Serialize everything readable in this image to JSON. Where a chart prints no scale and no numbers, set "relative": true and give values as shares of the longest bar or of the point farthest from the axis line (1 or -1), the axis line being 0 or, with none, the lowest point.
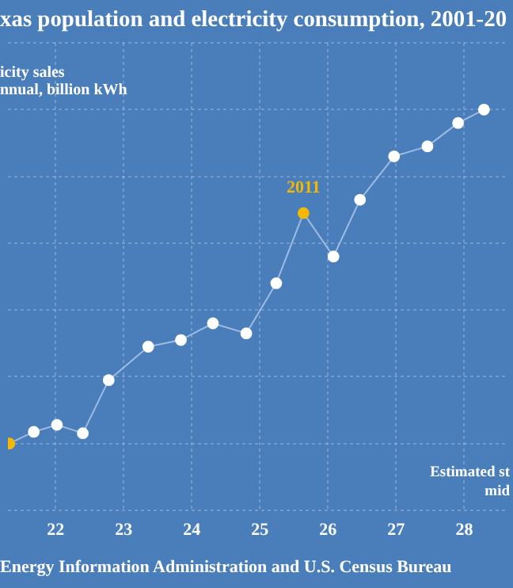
{
  "chart_data": {
    "type": "line",
    "title": "xas population and electricity consumption, 2001-20",
    "xlabel": "Estimated st\nmid",
    "relative": true,
    "x": [
      21.32,
      21.68,
      22.02,
      22.4,
      22.78,
      23.36,
      23.84,
      24.31,
      24.8,
      25.24,
      25.64,
      26.08,
      26.47,
      26.97,
      27.46,
      27.91,
      28.29
    ],
    "series": [
      {
        "color": "#9dbbe3",
        "values": [
          0,
          0.035,
          0.056,
          0.031,
          0.19,
          0.29,
          0.31,
          0.36,
          0.33,
          0.48,
          0.69,
          0.56,
          0.73,
          0.86,
          0.89,
          0.96,
          1
        ]
      }
    ],
    "colors": [
      "#f5b800",
      "#ffffff",
      "#ffffff",
      "#ffffff",
      "#ffffff",
      "#ffffff",
      "#ffffff",
      "#ffffff",
      "#ffffff",
      "#ffffff",
      "#f5b800",
      "#ffffff",
      "#ffffff",
      "#ffffff",
      "#ffffff",
      "#ffffff",
      "#ffffff"
    ],
    "xlim": [
      21.3,
      28.6
    ],
    "xticks": [
      22,
      23,
      24,
      25,
      26,
      27,
      28
    ],
    "grid": true,
    "legend": false,
    "marker": "circle",
    "line_style": "solid",
    "annotations": [
      "icity sales\nnnual, billion kWh",
      {
        "text": "2011",
        "x": 25.64,
        "y": 0.69
      },
      "Energy Information Administration and U.S. Census Bureau"
    ]
  }
}
